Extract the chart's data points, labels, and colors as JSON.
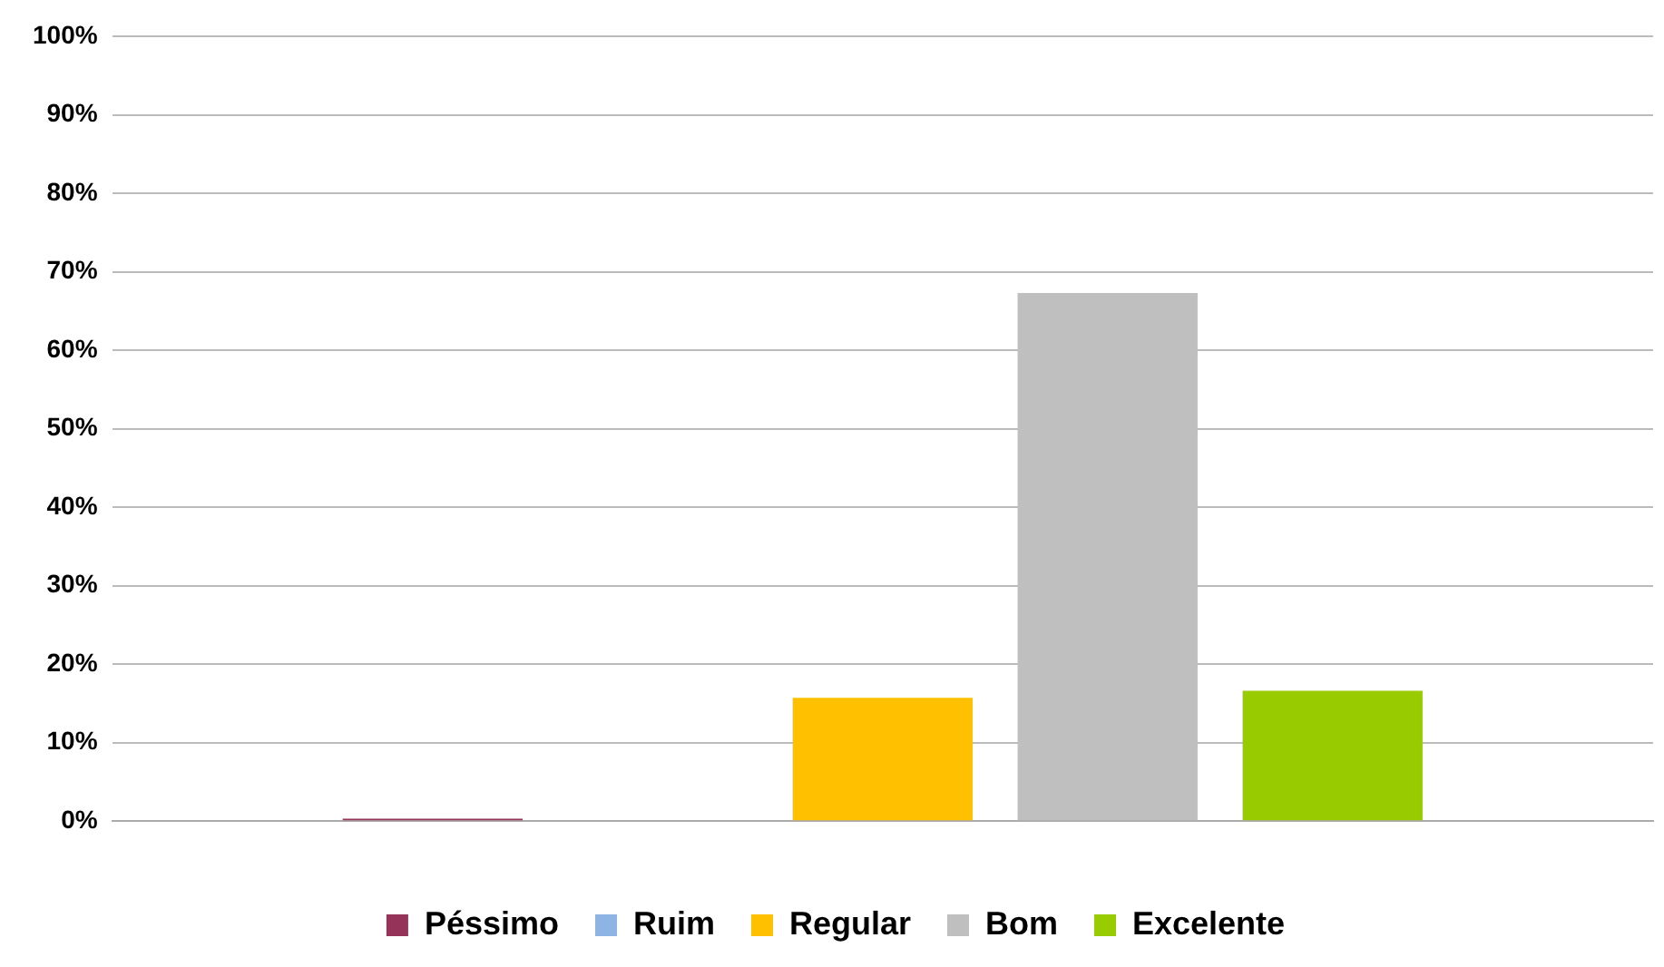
{
  "chart_data": {
    "type": "bar",
    "categories": [
      null
    ],
    "series": [
      {
        "name": "Péssimo",
        "color": "#953359",
        "values": [
          0.3
        ]
      },
      {
        "name": "Ruim",
        "color": "#8eb4e3",
        "values": [
          0
        ]
      },
      {
        "name": "Regular",
        "color": "#ffc000",
        "values": [
          15.7
        ]
      },
      {
        "name": "Bom",
        "color": "#bfbfbf",
        "values": [
          67.3
        ]
      },
      {
        "name": "Excelente",
        "color": "#99cc00",
        "values": [
          16.6
        ]
      }
    ],
    "ylim": [
      0,
      100
    ],
    "yticks": [
      {
        "value": 0,
        "label": "0%"
      },
      {
        "value": 10,
        "label": "10%"
      },
      {
        "value": 20,
        "label": "20%"
      },
      {
        "value": 30,
        "label": "30%"
      },
      {
        "value": 40,
        "label": "40%"
      },
      {
        "value": 50,
        "label": "50%"
      },
      {
        "value": 60,
        "label": "60%"
      },
      {
        "value": 70,
        "label": "70%"
      },
      {
        "value": 80,
        "label": "80%"
      },
      {
        "value": 90,
        "label": "90%"
      },
      {
        "value": 100,
        "label": "100%"
      }
    ],
    "grid": "y",
    "legend": "bottom"
  }
}
